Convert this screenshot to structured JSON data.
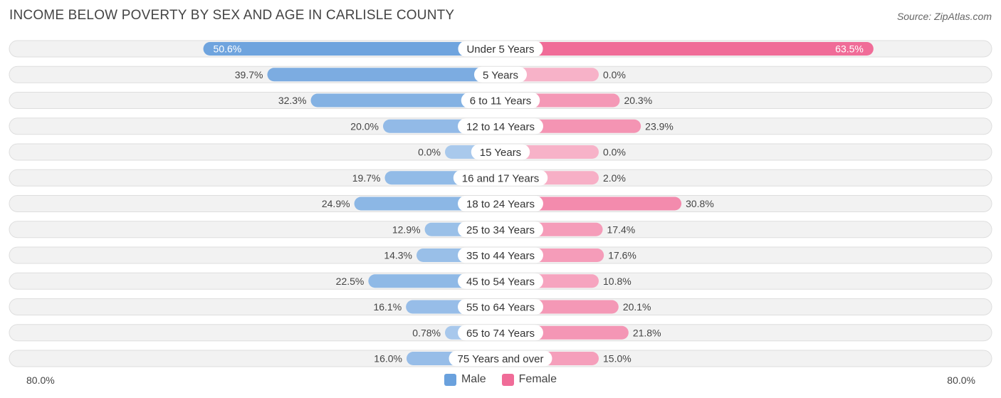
{
  "header": {
    "title": "INCOME BELOW POVERTY BY SEX AND AGE IN CARLISLE COUNTY",
    "source": "Source: ZipAtlas.com"
  },
  "colors": {
    "male_strong": "#6aa1dd",
    "male_light": "#a9c9ec",
    "female_strong": "#f06c98",
    "female_light": "#f7b2c8",
    "row_bg": "#f2f2f2",
    "row_border": "#dedede"
  },
  "legend": {
    "male_label": "Male",
    "female_label": "Female"
  },
  "axis": {
    "left_label": "80.0%",
    "right_label": "80.0%"
  },
  "chart_data": {
    "type": "bar",
    "orientation": "horizontal-diverging",
    "title": "INCOME BELOW POVERTY BY SEX AND AGE IN CARLISLE COUNTY",
    "xlim": [
      -80,
      80
    ],
    "categories": [
      "Under 5 Years",
      "5 Years",
      "6 to 11 Years",
      "12 to 14 Years",
      "15 Years",
      "16 and 17 Years",
      "18 to 24 Years",
      "25 to 34 Years",
      "35 to 44 Years",
      "45 to 54 Years",
      "55 to 64 Years",
      "65 to 74 Years",
      "75 Years and over"
    ],
    "series": [
      {
        "name": "Male",
        "values": [
          50.6,
          39.7,
          32.3,
          20.0,
          0.0,
          19.7,
          24.9,
          12.9,
          14.3,
          22.5,
          16.1,
          0.78,
          16.0
        ],
        "labels": [
          "50.6%",
          "39.7%",
          "32.3%",
          "20.0%",
          "0.0%",
          "19.7%",
          "24.9%",
          "12.9%",
          "14.3%",
          "22.5%",
          "16.1%",
          "0.78%",
          "16.0%"
        ]
      },
      {
        "name": "Female",
        "values": [
          63.5,
          0.0,
          20.3,
          23.9,
          0.0,
          2.0,
          30.8,
          17.4,
          17.6,
          10.8,
          20.1,
          21.8,
          15.0
        ],
        "labels": [
          "63.5%",
          "0.0%",
          "20.3%",
          "23.9%",
          "0.0%",
          "2.0%",
          "30.8%",
          "17.4%",
          "17.6%",
          "10.8%",
          "20.1%",
          "21.8%",
          "15.0%"
        ]
      }
    ],
    "legend_position": "bottom-center"
  }
}
